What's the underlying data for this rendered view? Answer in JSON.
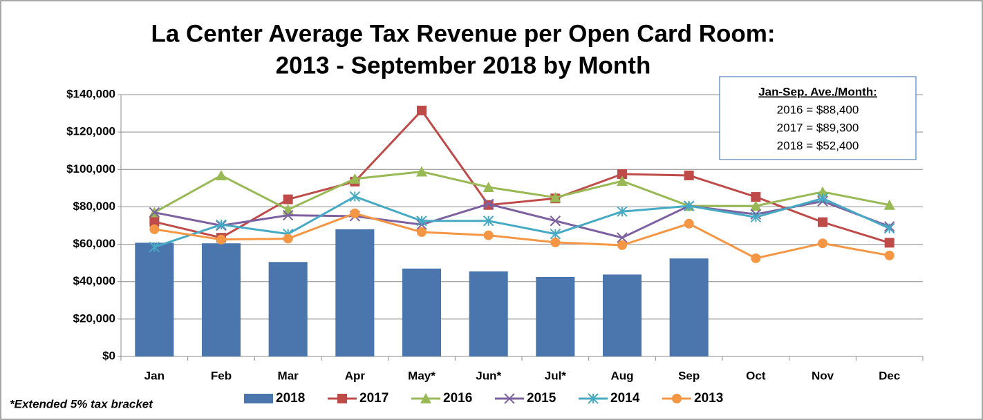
{
  "chart_data": {
    "type": "combo",
    "title": [
      "La Center Average Tax Revenue per Open Card Room:",
      "2013 - September 2018 by Month"
    ],
    "categories": [
      "Jan",
      "Feb",
      "Mar",
      "Apr",
      "May*",
      "Jun*",
      "Jul*",
      "Aug",
      "Sep",
      "Oct",
      "Nov",
      "Dec"
    ],
    "series": [
      {
        "name": "2018",
        "type": "bar",
        "color": "#4a76ad",
        "values": [
          60800,
          60500,
          50500,
          68000,
          47000,
          45500,
          42500,
          43800,
          52400,
          null,
          null,
          null
        ]
      },
      {
        "name": "2017",
        "type": "line",
        "marker": "square",
        "color": "#be4b48",
        "values": [
          72000,
          63500,
          84000,
          93500,
          131500,
          81000,
          84500,
          97500,
          96800,
          85300,
          71800,
          60800
        ]
      },
      {
        "name": "2016",
        "type": "line",
        "marker": "triangle",
        "color": "#98b954",
        "values": [
          77000,
          96800,
          78500,
          95000,
          98800,
          90500,
          85000,
          93800,
          80500,
          80500,
          88000,
          81000
        ]
      },
      {
        "name": "2015",
        "type": "line",
        "marker": "x",
        "color": "#7d60a0",
        "values": [
          77000,
          70000,
          75500,
          75000,
          70500,
          81500,
          72500,
          63500,
          80500,
          76000,
          83000,
          69500
        ]
      },
      {
        "name": "2014",
        "type": "line",
        "marker": "asterisk",
        "color": "#46aac5",
        "values": [
          58500,
          70500,
          65500,
          85500,
          72500,
          72500,
          65500,
          77500,
          80500,
          74500,
          84500,
          68500
        ]
      },
      {
        "name": "2013",
        "type": "line",
        "marker": "circle",
        "color": "#f59644",
        "values": [
          68000,
          62500,
          63000,
          76500,
          66500,
          64800,
          61000,
          59500,
          71000,
          52500,
          60500,
          54000
        ]
      }
    ],
    "ylim": [
      0,
      140000
    ],
    "yticks": [
      {
        "value": 0,
        "label": "$0"
      },
      {
        "value": 20000,
        "label": "$20,000"
      },
      {
        "value": 40000,
        "label": "$40,000"
      },
      {
        "value": 60000,
        "label": "$60,000"
      },
      {
        "value": 80000,
        "label": "$80,000"
      },
      {
        "value": 100000,
        "label": "$100,000"
      },
      {
        "value": 120000,
        "label": "$120,000"
      },
      {
        "value": 140000,
        "label": "$140,000"
      }
    ],
    "grid": true,
    "legend": "bottom",
    "annotation": {
      "title": "Jan-Sep. Ave./Month:",
      "lines": [
        "2016 = $88,400",
        "2017 = $89,300",
        "2018 = $52,400"
      ]
    },
    "note": "*Extended 5% tax bracket"
  }
}
